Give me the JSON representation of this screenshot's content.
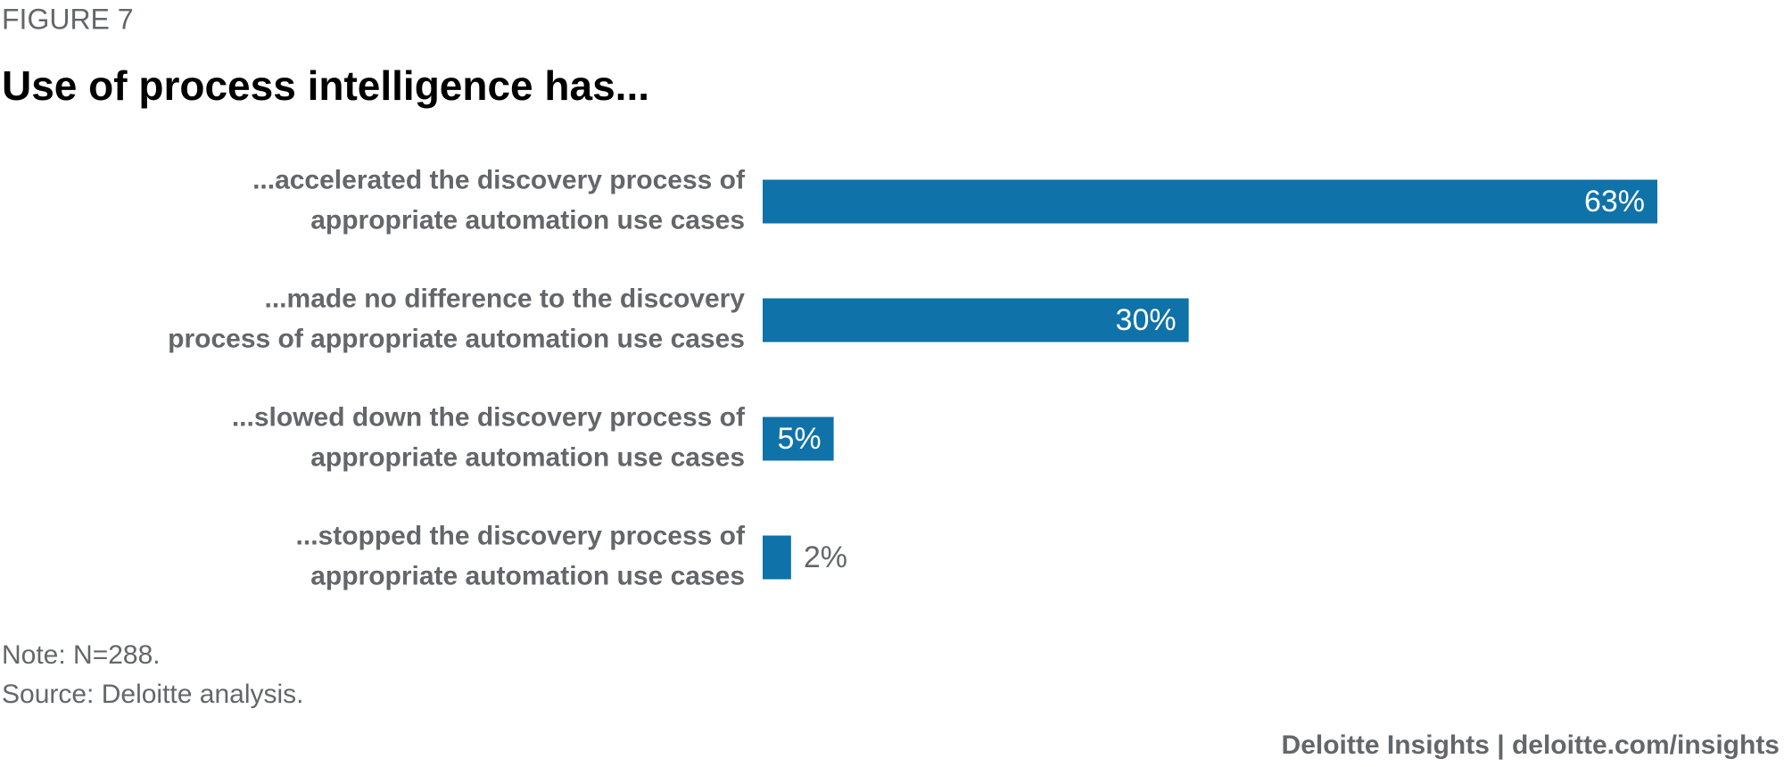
{
  "chart_data": {
    "type": "bar",
    "orientation": "horizontal",
    "figure_label": "FIGURE 7",
    "title": "Use of process intelligence has...",
    "categories": [
      [
        "...accelerated the discovery process of",
        "appropriate automation use cases"
      ],
      [
        "...made no difference to the discovery",
        "process of appropriate automation use cases"
      ],
      [
        "...slowed down the discovery process of",
        "appropriate automation use cases"
      ],
      [
        "...stopped the discovery process of",
        "appropriate automation use cases"
      ]
    ],
    "values": [
      63,
      30,
      5,
      2
    ],
    "value_labels": [
      "63%",
      "30%",
      "5%",
      "2%"
    ],
    "color": "#0f72a8",
    "notes": [
      "Note: N=288.",
      "Source: Deloitte analysis."
    ],
    "footer": "Deloitte Insights | deloitte.com/insights"
  }
}
